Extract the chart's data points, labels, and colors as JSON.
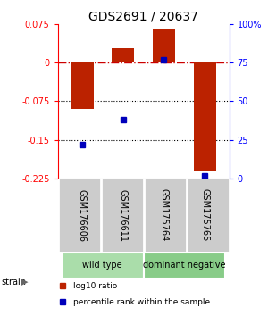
{
  "title": "GDS2691 / 20637",
  "samples": [
    "GSM176606",
    "GSM176611",
    "GSM175764",
    "GSM175765"
  ],
  "log10_ratio": [
    -0.09,
    0.028,
    0.065,
    -0.21
  ],
  "percentile_rank": [
    22,
    38,
    77,
    2
  ],
  "ylim_left": [
    -0.225,
    0.075
  ],
  "ylim_right": [
    0,
    100
  ],
  "yticks_left": [
    0.075,
    0,
    -0.075,
    -0.15,
    -0.225
  ],
  "yticks_right": [
    100,
    75,
    50,
    25,
    0
  ],
  "groups": [
    {
      "label": "wild type",
      "color": "#aaddaa",
      "samples": [
        0,
        1
      ]
    },
    {
      "label": "dominant negative",
      "color": "#88cc88",
      "samples": [
        2,
        3
      ]
    }
  ],
  "bar_color": "#BB2200",
  "dot_color": "#0000BB",
  "hline_color": "#CC0000",
  "dotted_lines": [
    -0.075,
    -0.15
  ],
  "background_color": "#ffffff",
  "legend_items": [
    {
      "color": "#BB2200",
      "label": "log10 ratio"
    },
    {
      "color": "#0000BB",
      "label": "percentile rank within the sample"
    }
  ],
  "strain_label": "strain",
  "bar_width": 0.55
}
